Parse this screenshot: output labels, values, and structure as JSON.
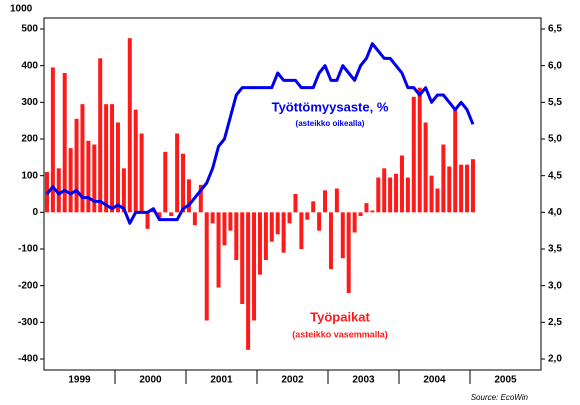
{
  "chart_data": {
    "type": "bar_line",
    "left_axis_unit": "1000",
    "categories": [
      null,
      null,
      null,
      null,
      null,
      null,
      null,
      null,
      null,
      null,
      null,
      null,
      null,
      null,
      null,
      null,
      null,
      null,
      null,
      null,
      null,
      null,
      null,
      null,
      null,
      null,
      null,
      null,
      null,
      null,
      null,
      null,
      null,
      null,
      null,
      null,
      null,
      null,
      null,
      null,
      null,
      null,
      null,
      null,
      null,
      null,
      null,
      null,
      null,
      null,
      null,
      null,
      null,
      null,
      null,
      null,
      null,
      null,
      null,
      null,
      null,
      null,
      null,
      null,
      null,
      null,
      null,
      null,
      null,
      null,
      null,
      null,
      null
    ],
    "xticks": [
      "1999",
      "2000",
      "2001",
      "2002",
      "2003",
      "2004",
      "2005"
    ],
    "series": [
      {
        "name": "Työpaikat",
        "color": "#ff1a1a",
        "axis": "y",
        "values": [
          110,
          395,
          120,
          380,
          175,
          255,
          295,
          195,
          185,
          420,
          295,
          295,
          245,
          120,
          475,
          280,
          215,
          -45,
          5,
          -15,
          165,
          -10,
          215,
          160,
          90,
          -35,
          75,
          -295,
          -30,
          -205,
          -90,
          -50,
          -130,
          -250,
          -375,
          -295,
          -170,
          -130,
          -80,
          -60,
          -110,
          -30,
          50,
          -100,
          -20,
          30,
          -50,
          60,
          -155,
          65,
          -125,
          -220,
          -55,
          -10,
          25,
          5,
          95,
          120,
          95,
          105,
          155,
          95,
          315,
          340,
          245,
          100,
          65,
          185,
          125,
          280,
          130,
          130,
          145
        ]
      },
      {
        "name": "Työttömyysaste, %",
        "color": "#0000ee",
        "axis": "y2",
        "values": [
          4.25,
          4.35,
          4.25,
          4.3,
          4.25,
          4.3,
          4.2,
          4.2,
          4.15,
          4.15,
          4.1,
          4.05,
          4.1,
          4.05,
          3.85,
          4.0,
          4.0,
          4.0,
          4.05,
          3.9,
          3.9,
          3.9,
          3.9,
          4.05,
          4.1,
          4.2,
          4.3,
          4.4,
          4.6,
          4.9,
          5.0,
          5.3,
          5.6,
          5.7,
          5.7,
          5.7,
          5.7,
          5.7,
          5.7,
          5.9,
          5.8,
          5.8,
          5.8,
          5.7,
          5.7,
          5.7,
          5.9,
          6.0,
          5.8,
          5.8,
          6.0,
          5.9,
          5.8,
          6.0,
          6.1,
          6.3,
          6.2,
          6.1,
          6.1,
          6.0,
          5.9,
          5.7,
          5.7,
          5.6,
          5.7,
          5.5,
          5.6,
          5.6,
          5.5,
          5.4,
          5.5,
          5.4,
          5.2
        ]
      }
    ],
    "series_notes": [
      "(asteikko vasemmalla)",
      "(asteikko oikealla)"
    ],
    "ylim": [
      -430,
      530
    ],
    "yticks": [
      500,
      400,
      300,
      200,
      100,
      0,
      -100,
      -200,
      -300,
      -400
    ],
    "y2lim": [
      1.85,
      6.65
    ],
    "y2ticks": [
      {
        "value": 6.5,
        "label": "6,5"
      },
      {
        "value": 6.0,
        "label": "6,0"
      },
      {
        "value": 5.5,
        "label": "5,5"
      },
      {
        "value": 5.0,
        "label": "5,0"
      },
      {
        "value": 4.5,
        "label": "4,5"
      },
      {
        "value": 4.0,
        "label": "4,0"
      },
      {
        "value": 3.5,
        "label": "3,5"
      },
      {
        "value": 3.0,
        "label": "3,0"
      },
      {
        "value": 2.5,
        "label": "2,5"
      },
      {
        "value": 2.0,
        "label": "2,0"
      }
    ],
    "source": "Source: EcoWin"
  }
}
